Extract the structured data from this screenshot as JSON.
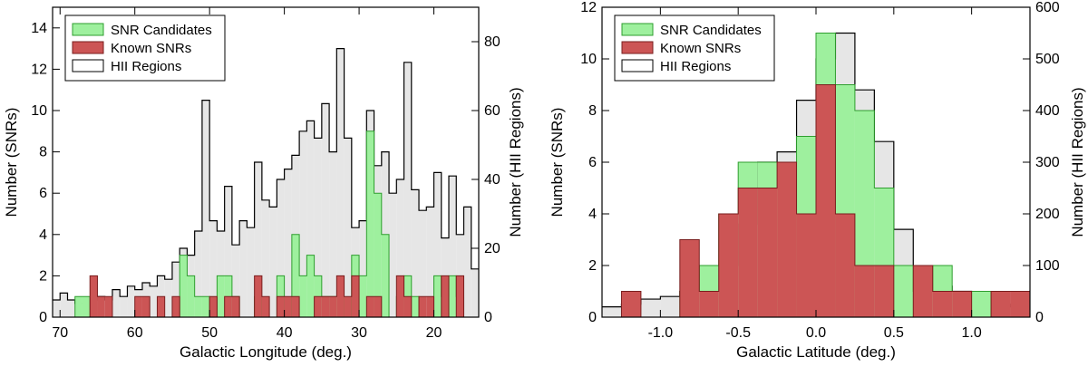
{
  "colors": {
    "snr_candidates": "#9ef09e",
    "snr_candidates_edge": "#2f9e2f",
    "known_snrs": "#cc5555",
    "known_snrs_edge": "#7a1e1e",
    "hii_regions": "#e6e6e6",
    "hii_regions_edge": "#000000"
  },
  "chart_data": [
    {
      "type": "histogram",
      "xlabel": "Galactic Longitude (deg.)",
      "ylabel": "Number (SNRs)",
      "y2label": "Number (HII Regions)",
      "xlim": [
        71,
        14
      ],
      "ylim": [
        0,
        15
      ],
      "y2lim": [
        0,
        90
      ],
      "xticks": [
        70,
        60,
        50,
        40,
        30,
        20
      ],
      "xtick_labels": [
        "70",
        "60",
        "50",
        "40",
        "30",
        "20"
      ],
      "yticks": [
        0,
        2,
        4,
        6,
        8,
        10,
        12,
        14
      ],
      "ytick_labels": [
        "0",
        "2",
        "4",
        "6",
        "8",
        "10",
        "12",
        "14"
      ],
      "y2ticks": [
        0,
        20,
        40,
        60,
        80
      ],
      "y2tick_labels": [
        "0",
        "20",
        "40",
        "60",
        "80"
      ],
      "legend": {
        "position": "top-left",
        "entries": [
          "SNR Candidates",
          "Known SNRs",
          "HII Regions"
        ]
      },
      "series": [
        {
          "name": "HII Regions",
          "axis": "right",
          "bins": [
            71,
            70,
            69,
            68,
            67,
            66,
            65,
            64,
            63,
            62,
            61,
            60,
            59,
            58,
            57,
            56,
            55,
            54,
            53,
            52,
            51,
            50,
            49,
            48,
            47,
            46,
            45,
            44,
            43,
            42,
            41,
            40,
            39,
            38,
            37,
            36,
            35,
            34,
            33,
            32,
            31,
            30,
            29,
            28,
            27,
            26,
            25,
            24,
            23,
            22,
            21,
            20,
            19,
            18,
            17,
            16,
            15,
            14
          ],
          "values": [
            5,
            7,
            5,
            4,
            4,
            5,
            6,
            5,
            8,
            6,
            9,
            8,
            10,
            9,
            12,
            11,
            16,
            20,
            18,
            25,
            63,
            28,
            25,
            38,
            21,
            28,
            26,
            45,
            34,
            32,
            40,
            43,
            47,
            54,
            57,
            52,
            62,
            48,
            78,
            52,
            26,
            28,
            60,
            44,
            48,
            36,
            40,
            74,
            37,
            31,
            32,
            42,
            23,
            41,
            24,
            32,
            14
          ]
        },
        {
          "name": "SNR Candidates",
          "axis": "left",
          "bins": [
            71,
            70,
            69,
            68,
            67,
            66,
            65,
            64,
            63,
            62,
            61,
            60,
            59,
            58,
            57,
            56,
            55,
            54,
            53,
            52,
            51,
            50,
            49,
            48,
            47,
            46,
            45,
            44,
            43,
            42,
            41,
            40,
            39,
            38,
            37,
            36,
            35,
            34,
            33,
            32,
            31,
            30,
            29,
            28,
            27,
            26,
            25,
            24,
            23,
            22,
            21,
            20,
            19,
            18,
            17,
            16,
            15,
            14
          ],
          "values": [
            0,
            0,
            0,
            1,
            1,
            0,
            0,
            0,
            0,
            0,
            0,
            0,
            0,
            0,
            0,
            0,
            0,
            3,
            2,
            1,
            1,
            0,
            2,
            2,
            1,
            0,
            0,
            1,
            0,
            0,
            2,
            0,
            4,
            2,
            3,
            2,
            1,
            1,
            1,
            0,
            3,
            2,
            9,
            6,
            4,
            0,
            1,
            2,
            1,
            0,
            0,
            2,
            1,
            2,
            1,
            0,
            0
          ]
        },
        {
          "name": "Known SNRs",
          "axis": "left",
          "bins": [
            71,
            70,
            69,
            68,
            67,
            66,
            65,
            64,
            63,
            62,
            61,
            60,
            59,
            58,
            57,
            56,
            55,
            54,
            53,
            52,
            51,
            50,
            49,
            48,
            47,
            46,
            45,
            44,
            43,
            42,
            41,
            40,
            39,
            38,
            37,
            36,
            35,
            34,
            33,
            32,
            31,
            30,
            29,
            28,
            27,
            26,
            25,
            24,
            23,
            22,
            21,
            20,
            19,
            18,
            17,
            16,
            15,
            14
          ],
          "values": [
            0,
            0,
            0,
            0,
            0,
            2,
            1,
            1,
            0,
            0,
            0,
            1,
            1,
            0,
            1,
            0,
            1,
            0,
            0,
            0,
            0,
            1,
            0,
            1,
            1,
            0,
            0,
            2,
            1,
            0,
            1,
            1,
            1,
            0,
            0,
            1,
            1,
            1,
            2,
            1,
            2,
            0,
            1,
            1,
            0,
            0,
            2,
            1,
            0,
            1,
            1,
            0,
            2,
            0,
            2,
            0,
            0
          ]
        }
      ]
    },
    {
      "type": "histogram",
      "xlabel": "Galactic Latitude (deg.)",
      "ylabel": "Number (SNRs)",
      "y2label": "Number (HII Regions)",
      "xlim": [
        -1.375,
        1.375
      ],
      "ylim": [
        0,
        12
      ],
      "y2lim": [
        0,
        600
      ],
      "xticks": [
        -1.0,
        -0.5,
        0.0,
        0.5,
        1.0
      ],
      "xtick_labels": [
        "-1.0",
        "-0.5",
        "0.0",
        "0.5",
        "1.0"
      ],
      "yticks": [
        0,
        2,
        4,
        6,
        8,
        10,
        12
      ],
      "ytick_labels": [
        "0",
        "2",
        "4",
        "6",
        "8",
        "10",
        "12"
      ],
      "y2ticks": [
        0,
        100,
        200,
        300,
        400,
        500,
        600
      ],
      "y2tick_labels": [
        "0",
        "100",
        "200",
        "300",
        "400",
        "500",
        "600"
      ],
      "legend": {
        "position": "top-left",
        "entries": [
          "SNR Candidates",
          "Known SNRs",
          "HII Regions"
        ]
      },
      "series": [
        {
          "name": "HII Regions",
          "axis": "right",
          "bins": [
            -1.375,
            -1.25,
            -1.125,
            -1.0,
            -0.875,
            -0.75,
            -0.625,
            -0.5,
            -0.375,
            -0.25,
            -0.125,
            0.0,
            0.125,
            0.25,
            0.375,
            0.5,
            0.625,
            0.75,
            0.875,
            1.0,
            1.125,
            1.25,
            1.375
          ],
          "values": [
            20,
            25,
            35,
            40,
            50,
            70,
            100,
            180,
            300,
            320,
            420,
            500,
            550,
            440,
            340,
            170,
            90,
            60,
            50,
            35,
            25,
            20
          ]
        },
        {
          "name": "SNR Candidates",
          "axis": "left",
          "bins": [
            -1.375,
            -1.25,
            -1.125,
            -1.0,
            -0.875,
            -0.75,
            -0.625,
            -0.5,
            -0.375,
            -0.25,
            -0.125,
            0.0,
            0.125,
            0.25,
            0.375,
            0.5,
            0.625,
            0.75,
            0.875,
            1.0,
            1.125,
            1.25,
            1.375
          ],
          "values": [
            0,
            0,
            0,
            0,
            1,
            2,
            4,
            6,
            6,
            6,
            7,
            11,
            9,
            8,
            5,
            2,
            1,
            2,
            1,
            1,
            0,
            0
          ]
        },
        {
          "name": "Known SNRs",
          "axis": "left",
          "bins": [
            -1.375,
            -1.25,
            -1.125,
            -1.0,
            -0.875,
            -0.75,
            -0.625,
            -0.5,
            -0.375,
            -0.25,
            -0.125,
            0.0,
            0.125,
            0.25,
            0.375,
            0.5,
            0.625,
            0.75,
            0.875,
            1.0,
            1.125,
            1.25,
            1.375
          ],
          "values": [
            0,
            1,
            0,
            0,
            3,
            1,
            4,
            5,
            5,
            6,
            4,
            9,
            4,
            2,
            2,
            0,
            2,
            1,
            1,
            0,
            1,
            1
          ]
        }
      ]
    }
  ]
}
